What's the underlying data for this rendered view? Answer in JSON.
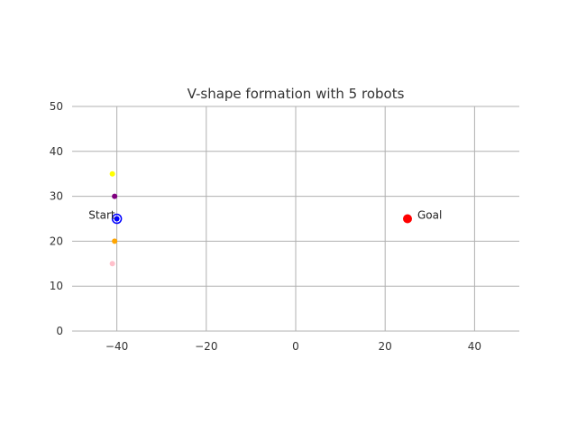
{
  "chart_data": {
    "type": "scatter",
    "title": "V-shape formation with 5 robots",
    "xlabel": "",
    "ylabel": "",
    "xlim": [
      -50,
      50
    ],
    "ylim": [
      0,
      50
    ],
    "grid": true,
    "x_ticks": [
      -40,
      -20,
      0,
      20,
      40
    ],
    "x_tick_labels": [
      "−40",
      "−20",
      "0",
      "20",
      "40"
    ],
    "y_ticks": [
      0,
      10,
      20,
      30,
      40,
      50
    ],
    "y_tick_labels": [
      "0",
      "10",
      "20",
      "30",
      "40",
      "50"
    ],
    "points": [
      {
        "x": -41,
        "y": 35,
        "color": "#ffff00",
        "size": 3
      },
      {
        "x": -40.5,
        "y": 30,
        "color": "#800080",
        "size": 3
      },
      {
        "x": -40,
        "y": 25,
        "color": "#0000ff",
        "size": 3
      },
      {
        "x": -40.5,
        "y": 20,
        "color": "#ffa500",
        "size": 3
      },
      {
        "x": -41,
        "y": 15,
        "color": "#ffc0cb",
        "size": 3
      },
      {
        "x": -40,
        "y": 25,
        "color": "#0000ff",
        "size": 5,
        "hollow": true
      },
      {
        "x": 25,
        "y": 25,
        "color": "#ff0000",
        "size": 5
      }
    ],
    "annotations": [
      {
        "text": "Start",
        "x": -40,
        "y": 25
      },
      {
        "text": "Goal",
        "x": 25,
        "y": 25
      }
    ]
  }
}
